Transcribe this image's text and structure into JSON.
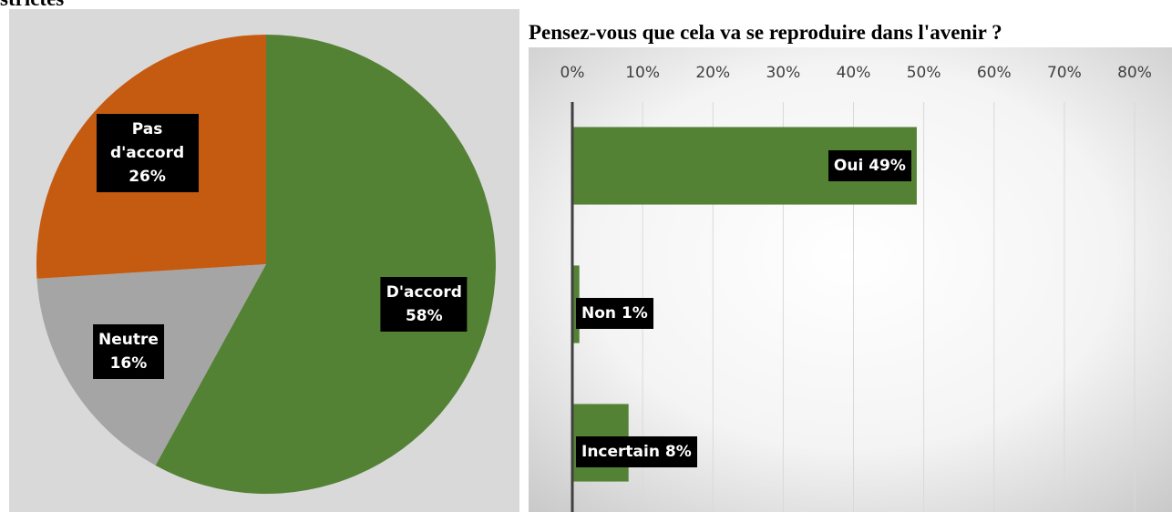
{
  "chart_data": [
    {
      "type": "pie",
      "title": "strictes",
      "categories": [
        "D'accord",
        "Neutre",
        "Pas d'accord"
      ],
      "values": [
        58,
        16,
        26
      ],
      "value_labels": [
        "58%",
        "16%",
        "26%"
      ],
      "colors": [
        "#548235",
        "#a5a5a5",
        "#c55a11"
      ]
    },
    {
      "type": "hbar",
      "title": "Pensez-vous que cela va se reproduire dans l'avenir ?",
      "categories": [
        "Oui",
        "Non",
        "Incertain"
      ],
      "values": [
        49,
        1,
        8
      ],
      "value_labels": [
        "49%",
        "1%",
        "8%"
      ],
      "color": "#548235",
      "xlim": [
        0,
        80
      ],
      "xticks": [
        {
          "value": 0,
          "label": "0%"
        },
        {
          "value": 10,
          "label": "10%"
        },
        {
          "value": 20,
          "label": "20%"
        },
        {
          "value": 30,
          "label": "30%"
        },
        {
          "value": 40,
          "label": "40%"
        },
        {
          "value": 50,
          "label": "50%"
        },
        {
          "value": 60,
          "label": "60%"
        },
        {
          "value": 70,
          "label": "70%"
        },
        {
          "value": 80,
          "label": "80%"
        }
      ],
      "grid": true
    }
  ]
}
